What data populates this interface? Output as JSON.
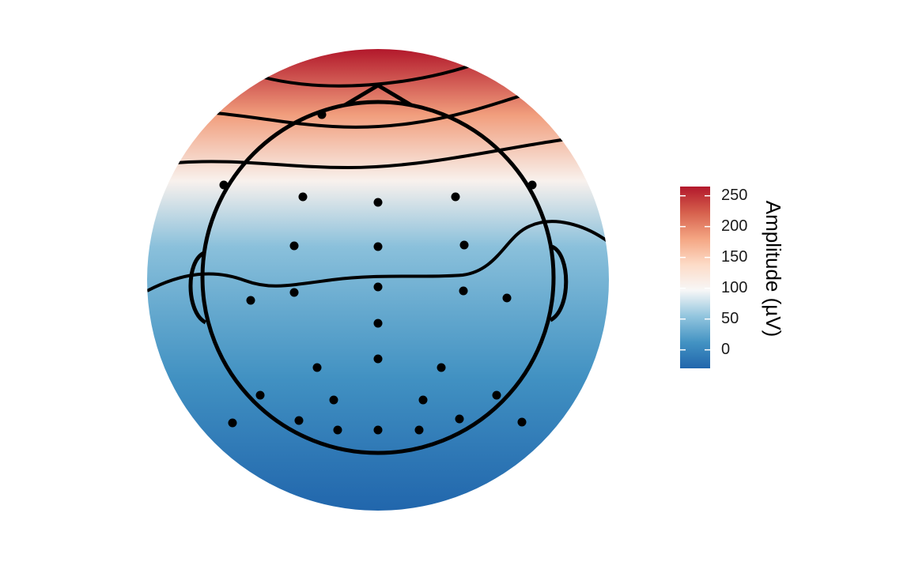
{
  "chart_data": {
    "type": "heatmap",
    "subtype": "eeg-topographic-map",
    "head_outline": true,
    "contours": true,
    "scale": {
      "title": "Amplitude (µV)",
      "min": -30,
      "max": 265,
      "ticks": [
        0,
        50,
        100,
        150,
        200,
        250
      ],
      "colors": [
        "#2166ac",
        "#4393c3",
        "#92c5de",
        "#f7f7f7",
        "#fddbc7",
        "#f4a582",
        "#d6604d",
        "#b2182b"
      ]
    },
    "gradient_by_row": [
      {
        "row": "top",
        "value": 265
      },
      {
        "row": "upper-frontal",
        "value": 185
      },
      {
        "row": "frontal",
        "value": 105
      },
      {
        "row": "fronto-central",
        "value": 50
      },
      {
        "row": "central",
        "value": 30
      },
      {
        "row": "centro-parietal",
        "value": 10
      },
      {
        "row": "parietal",
        "value": -10
      },
      {
        "row": "bottom",
        "value": -30
      }
    ]
  },
  "colors": {
    "background": "#ffffff",
    "outline": "#000000",
    "electrode": "#000000"
  }
}
